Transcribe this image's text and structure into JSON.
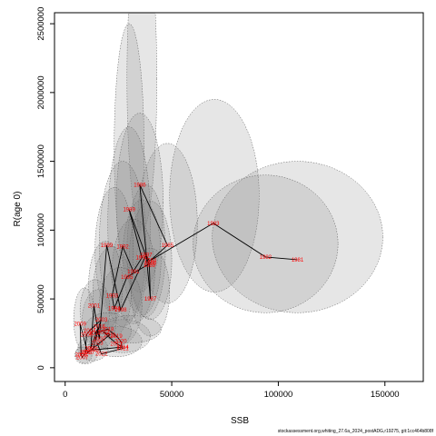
{
  "chart_data": {
    "type": "scatter",
    "xlabel": "SSB",
    "ylabel": "R(age 0)",
    "xlim": [
      -5000,
      168000
    ],
    "ylim": [
      -100000,
      2580000
    ],
    "x_ticks": [
      0,
      50000,
      100000,
      150000
    ],
    "x_tick_labels": [
      "0",
      "50000",
      "100000",
      "150000"
    ],
    "y_ticks": [
      0,
      500000,
      1000000,
      1500000,
      2000000,
      2500000
    ],
    "y_tick_labels": [
      "0",
      "500000",
      "1000000",
      "1500000",
      "2000000",
      "2500000"
    ],
    "grid": false,
    "points": [
      {
        "label": "1981",
        "x": 109000,
        "y": 785000
      },
      {
        "label": "1982",
        "x": 94000,
        "y": 805000
      },
      {
        "label": "1983",
        "x": 69500,
        "y": 1050000
      },
      {
        "label": "1984",
        "x": 40000,
        "y": 780000
      },
      {
        "label": "1985",
        "x": 48000,
        "y": 890000
      },
      {
        "label": "1986",
        "x": 35000,
        "y": 1330000
      },
      {
        "label": "1987",
        "x": 40000,
        "y": 500000
      },
      {
        "label": "1988",
        "x": 39500,
        "y": 745000
      },
      {
        "label": "1989",
        "x": 30000,
        "y": 1150000
      },
      {
        "label": "1990",
        "x": 36000,
        "y": 800000
      },
      {
        "label": "1991",
        "x": 32000,
        "y": 700000
      },
      {
        "label": "1992",
        "x": 27000,
        "y": 880000
      },
      {
        "label": "1993",
        "x": 22000,
        "y": 525000
      },
      {
        "label": "1994",
        "x": 23000,
        "y": 430000
      },
      {
        "label": "1995",
        "x": 29000,
        "y": 660000
      },
      {
        "label": "1996",
        "x": 40000,
        "y": 760000
      },
      {
        "label": "1997",
        "x": 38000,
        "y": 820000
      },
      {
        "label": "1998",
        "x": 26000,
        "y": 420000
      },
      {
        "label": "1999",
        "x": 19500,
        "y": 890000
      },
      {
        "label": "2000",
        "x": 16000,
        "y": 210000
      },
      {
        "label": "2001",
        "x": 13500,
        "y": 450000
      },
      {
        "label": "2002",
        "x": 12000,
        "y": 140000
      },
      {
        "label": "2003",
        "x": 17000,
        "y": 350000
      },
      {
        "label": "2004",
        "x": 11500,
        "y": 270000
      },
      {
        "label": "2005",
        "x": 10000,
        "y": 240000
      },
      {
        "label": "2006",
        "x": 9500,
        "y": 110000
      },
      {
        "label": "2007",
        "x": 8000,
        "y": 75000
      },
      {
        "label": "2008",
        "x": 7500,
        "y": 95000
      },
      {
        "label": "2009",
        "x": 7000,
        "y": 320000
      },
      {
        "label": "2010",
        "x": 10500,
        "y": 110000
      },
      {
        "label": "2011",
        "x": 21000,
        "y": 240000
      },
      {
        "label": "2012",
        "x": 18000,
        "y": 260000
      },
      {
        "label": "2013",
        "x": 24000,
        "y": 175000
      },
      {
        "label": "2014",
        "x": 27000,
        "y": 150000
      },
      {
        "label": "2015",
        "x": 13000,
        "y": 130000
      },
      {
        "label": "2016",
        "x": 16000,
        "y": 300000
      },
      {
        "label": "2017",
        "x": 14000,
        "y": 250000
      },
      {
        "label": "2018",
        "x": 20000,
        "y": 280000
      },
      {
        "label": "2019",
        "x": 24000,
        "y": 230000
      },
      {
        "label": "2020",
        "x": 26000,
        "y": 195000
      },
      {
        "label": "2021",
        "x": 27000,
        "y": 140000
      },
      {
        "label": "2022",
        "x": 17000,
        "y": 100000
      },
      {
        "label": "2023",
        "x": 15000,
        "y": 180000
      }
    ],
    "ellipses": [
      {
        "cx": 36000,
        "cy": 2100000,
        "rx": 7000,
        "ry": 1100000
      },
      {
        "cx": 30000,
        "cy": 1600000,
        "rx": 7000,
        "ry": 900000
      },
      {
        "cx": 70000,
        "cy": 1250000,
        "rx": 21000,
        "ry": 700000
      },
      {
        "cx": 109000,
        "cy": 950000,
        "rx": 40000,
        "ry": 550000
      },
      {
        "cx": 94000,
        "cy": 900000,
        "rx": 34000,
        "ry": 500000
      },
      {
        "cx": 48000,
        "cy": 1050000,
        "rx": 14000,
        "ry": 580000
      },
      {
        "cx": 35000,
        "cy": 1200000,
        "rx": 11000,
        "ry": 650000
      },
      {
        "cx": 30000,
        "cy": 1050000,
        "rx": 10000,
        "ry": 700000
      },
      {
        "cx": 27000,
        "cy": 900000,
        "rx": 11000,
        "ry": 600000
      },
      {
        "cx": 38000,
        "cy": 850000,
        "rx": 9000,
        "ry": 480000
      },
      {
        "cx": 40000,
        "cy": 780000,
        "rx": 10000,
        "ry": 430000
      },
      {
        "cx": 36000,
        "cy": 800000,
        "rx": 9000,
        "ry": 420000
      },
      {
        "cx": 32000,
        "cy": 700000,
        "rx": 10000,
        "ry": 380000
      },
      {
        "cx": 23000,
        "cy": 850000,
        "rx": 9000,
        "ry": 460000
      },
      {
        "cx": 40000,
        "cy": 550000,
        "rx": 9000,
        "ry": 320000
      },
      {
        "cx": 22000,
        "cy": 550000,
        "rx": 9000,
        "ry": 330000
      },
      {
        "cx": 26000,
        "cy": 450000,
        "rx": 10000,
        "ry": 280000
      },
      {
        "cx": 19000,
        "cy": 600000,
        "rx": 8000,
        "ry": 320000
      },
      {
        "cx": 16000,
        "cy": 350000,
        "rx": 8000,
        "ry": 220000
      },
      {
        "cx": 9000,
        "cy": 350000,
        "rx": 5000,
        "ry": 230000
      },
      {
        "cx": 14000,
        "cy": 420000,
        "rx": 7000,
        "ry": 220000
      },
      {
        "cx": 27000,
        "cy": 230000,
        "rx": 13000,
        "ry": 120000
      },
      {
        "cx": 24000,
        "cy": 190000,
        "rx": 12000,
        "ry": 110000
      },
      {
        "cx": 20000,
        "cy": 270000,
        "rx": 11000,
        "ry": 130000
      },
      {
        "cx": 31000,
        "cy": 280000,
        "rx": 14000,
        "ry": 100000
      },
      {
        "cx": 13000,
        "cy": 140000,
        "rx": 7000,
        "ry": 90000
      },
      {
        "cx": 10000,
        "cy": 100000,
        "rx": 5000,
        "ry": 70000
      },
      {
        "cx": 8500,
        "cy": 90000,
        "rx": 4000,
        "ry": 60000
      }
    ]
  },
  "footer_text": "stockassessment.org,whiting_27.6a_2024_postADG,r19275, git:1cc464b808f"
}
